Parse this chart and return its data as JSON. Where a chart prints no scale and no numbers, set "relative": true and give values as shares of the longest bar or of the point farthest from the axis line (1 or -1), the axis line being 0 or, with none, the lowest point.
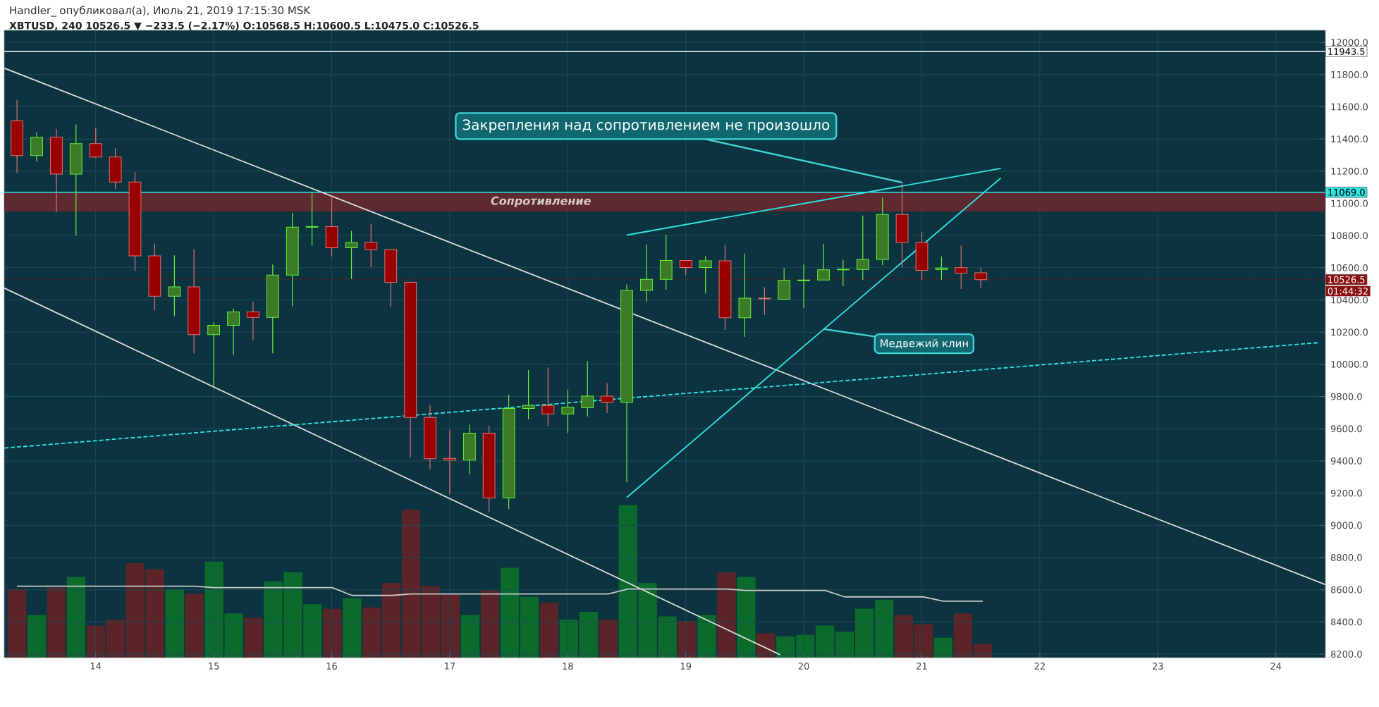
{
  "chart_data": [
    {
      "type": "candlestick",
      "title": "Handler_ опубликовал(а), Июль 21, 2019 17:15:30 MSK",
      "subtitle": "XBTUSD, 240 10526.5 ▼ −233.5 (−2.17%) O:10568.5 H:10600.5 L:10475.0 C:10526.5",
      "x": [
        13.333,
        13.5,
        13.667,
        13.833,
        14,
        14.167,
        14.333,
        14.5,
        14.667,
        14.833,
        15,
        15.167,
        15.333,
        15.5,
        15.667,
        15.833,
        16,
        16.167,
        16.333,
        16.5,
        16.667,
        16.833,
        17,
        17.167,
        17.333,
        17.5,
        17.667,
        17.833,
        18,
        18.167,
        18.333,
        18.5,
        18.667,
        18.833,
        19,
        19.167,
        19.333,
        19.5,
        19.667,
        19.833,
        20,
        20.167,
        20.333,
        20.5,
        20.667,
        20.833,
        21,
        21.167,
        21.333,
        21.5
      ],
      "ohlc": [
        [
          11512,
          11643,
          11189,
          11297
        ],
        [
          11297,
          11441,
          11261,
          11411
        ],
        [
          11411,
          11463,
          10946,
          11182
        ],
        [
          11182,
          11490,
          10800,
          11371
        ],
        [
          11371,
          11470,
          11283,
          11288
        ],
        [
          11288,
          11344,
          11088,
          11133
        ],
        [
          11133,
          11193,
          10580,
          10674
        ],
        [
          10674,
          10751,
          10335,
          10423
        ],
        [
          10423,
          10677,
          10301,
          10481
        ],
        [
          10481,
          10715,
          10068,
          10185
        ],
        [
          10185,
          10261,
          9852,
          10243
        ],
        [
          10243,
          10346,
          10059,
          10326
        ],
        [
          10326,
          10389,
          10149,
          10292
        ],
        [
          10292,
          10620,
          10068,
          10555
        ],
        [
          10555,
          10940,
          10362,
          10852
        ],
        [
          10852,
          11065,
          10737,
          10856
        ],
        [
          10856,
          11036,
          10670,
          10724
        ],
        [
          10724,
          10829,
          10530,
          10757
        ],
        [
          10757,
          10874,
          10605,
          10712
        ],
        [
          10712,
          10715,
          10357,
          10510
        ],
        [
          10510,
          10515,
          9423,
          9670
        ],
        [
          9670,
          9748,
          9349,
          9414
        ],
        [
          9416,
          9593,
          9193,
          9405
        ],
        [
          9405,
          9625,
          9319,
          9573
        ],
        [
          9573,
          9620,
          9081,
          9171
        ],
        [
          9171,
          9811,
          9101,
          9726
        ],
        [
          9726,
          9964,
          9659,
          9746
        ],
        [
          9744,
          9980,
          9616,
          9692
        ],
        [
          9692,
          9843,
          9575,
          9733
        ],
        [
          9731,
          10020,
          9677,
          9802
        ],
        [
          9802,
          9883,
          9699,
          9764
        ],
        [
          9764,
          10497,
          9268,
          10459
        ],
        [
          10459,
          10744,
          10389,
          10528
        ],
        [
          10528,
          10805,
          10463,
          10645
        ],
        [
          10645,
          10645,
          10553,
          10602
        ],
        [
          10602,
          10672,
          10441,
          10643
        ],
        [
          10643,
          10744,
          10211,
          10290
        ],
        [
          10290,
          10688,
          10171,
          10411
        ],
        [
          10411,
          10479,
          10306,
          10407
        ],
        [
          10405,
          10598,
          10405,
          10522
        ],
        [
          10519,
          10620,
          10351,
          10524
        ],
        [
          10524,
          10749,
          10524,
          10587
        ],
        [
          10587,
          10650,
          10486,
          10591
        ],
        [
          10589,
          10924,
          10524,
          10652
        ],
        [
          10652,
          11036,
          10616,
          10931
        ],
        [
          10931,
          11130,
          10602,
          10757
        ],
        [
          10757,
          10823,
          10524,
          10584
        ],
        [
          10589,
          10670,
          10526,
          10598
        ],
        [
          10600,
          10737,
          10468,
          10567
        ],
        [
          10568.5,
          10600.5,
          10475.0,
          10526.5
        ]
      ],
      "colors": [
        "#990000",
        "#3c7a28",
        "#990000",
        "#3c7a28",
        "#990000",
        "#990000",
        "#990000",
        "#990000",
        "#3c7a28",
        "#990000",
        "#3c7a28",
        "#3c7a28",
        "#990000",
        "#3c7a28",
        "#3c7a28",
        "#3c7a28",
        "#990000",
        "#3c7a28",
        "#990000",
        "#990000",
        "#990000",
        "#990000",
        "#990000",
        "#3c7a28",
        "#990000",
        "#3c7a28",
        "#3c7a28",
        "#990000",
        "#3c7a28",
        "#3c7a28",
        "#990000",
        "#3c7a28",
        "#3c7a28",
        "#3c7a28",
        "#990000",
        "#3c7a28",
        "#990000",
        "#3c7a28",
        "#990000",
        "#3c7a28",
        "#3c7a28",
        "#3c7a28",
        "#3c7a28",
        "#3c7a28",
        "#3c7a28",
        "#990000",
        "#990000",
        "#3c7a28",
        "#990000",
        "#990000"
      ],
      "series": [
        {
          "type": "line",
          "color": "#d8d8d8",
          "x": [
            13.225,
            24.42
          ],
          "values": [
            11840,
            8632
          ]
        },
        {
          "type": "line",
          "color": "#d8d8d8",
          "x": [
            13.225,
            19.8
          ],
          "values": [
            10474,
            8196
          ]
        },
        {
          "type": "line",
          "color": "#2ee6e6",
          "line_style": "dashed",
          "x": [
            13.225,
            24.37
          ],
          "values": [
            9480,
            10135
          ]
        },
        {
          "type": "line",
          "color": "#2ee6e6",
          "x": [
            18.5,
            21.67
          ],
          "values": [
            10803,
            11217
          ]
        },
        {
          "type": "line",
          "color": "#2ee6e6",
          "x": [
            18.5,
            21.67
          ],
          "values": [
            9173,
            11158
          ]
        }
      ],
      "xlim": [
        13.225,
        24.42
      ],
      "ylim": [
        8178,
        12075
      ],
      "xticks": [
        14,
        15,
        16,
        17,
        18,
        19,
        20,
        21,
        22,
        23,
        24
      ],
      "yticks": [
        {
          "value": 8200,
          "label": "8200.0"
        },
        {
          "value": 8400,
          "label": "8400.0"
        },
        {
          "value": 8600,
          "label": "8600.0"
        },
        {
          "value": 8800,
          "label": "8800.0"
        },
        {
          "value": 9000,
          "label": "9000.0"
        },
        {
          "value": 9200,
          "label": "9200.0"
        },
        {
          "value": 9400,
          "label": "9400.0"
        },
        {
          "value": 9600,
          "label": "9600.0"
        },
        {
          "value": 9800,
          "label": "9800.0"
        },
        {
          "value": 10000,
          "label": "10000.0"
        },
        {
          "value": 10200,
          "label": "10200.0"
        },
        {
          "value": 10400,
          "label": "10400.0"
        },
        {
          "value": 10600,
          "label": "10600.0"
        },
        {
          "value": 10800,
          "label": "10800.0"
        },
        {
          "value": 11000,
          "label": "11000.0"
        },
        {
          "value": 11200,
          "label": "11200.0"
        },
        {
          "value": 11400,
          "label": "11400.0"
        },
        {
          "value": 11600,
          "label": "11600.0"
        },
        {
          "value": 11800,
          "label": "11800.0"
        },
        {
          "value": 12000,
          "label": "12000.0"
        }
      ],
      "ref_lines": [
        {
          "axis": "y",
          "value": 11943.5,
          "label": "11943.5",
          "color": "#ffffff"
        },
        {
          "axis": "y",
          "value": 11069.0,
          "label": "11069.0",
          "color": "#2ee6e6"
        },
        {
          "axis": "y",
          "value": 10526.5,
          "label": "10526.5",
          "color": "#8b1010",
          "line_style": "dotted"
        }
      ],
      "bands": [
        {
          "axis": "y",
          "from": 10950,
          "to": 11069,
          "label": "Сопротивление",
          "color": "#5c2a30"
        }
      ],
      "annotations": [
        {
          "text": "Закрепления над сопротивлением не произошло",
          "x": 20.833,
          "y": 11130
        },
        {
          "text": "Медвежий клин",
          "x": 20.17,
          "y": 10219
        },
        "01:44:32"
      ],
      "grid": true
    },
    {
      "type": "bar",
      "relative": true,
      "tick_labels": false,
      "categories": [
        null,
        null,
        null,
        null,
        null,
        null,
        null,
        null,
        null,
        null,
        null,
        null,
        null,
        null,
        null,
        null,
        null,
        null,
        null,
        null,
        null,
        null,
        null,
        null,
        null,
        null,
        null,
        null,
        null,
        null,
        null,
        null,
        null,
        null,
        null,
        null,
        null,
        null,
        null,
        null,
        null,
        null,
        null,
        null,
        null,
        null,
        null,
        null,
        null,
        null
      ],
      "series": [
        {
          "type": "bar",
          "values": [
            0.45,
            0.28,
            0.46,
            0.53,
            0.21,
            0.25,
            0.62,
            0.58,
            0.45,
            0.42,
            0.63,
            0.29,
            0.26,
            0.5,
            0.56,
            0.35,
            0.32,
            0.39,
            0.33,
            0.49,
            0.97,
            0.47,
            0.42,
            0.28,
            0.44,
            0.59,
            0.4,
            0.36,
            0.25,
            0.3,
            0.25,
            1,
            0.49,
            0.27,
            0.24,
            0.28,
            0.56,
            0.53,
            0.16,
            0.14,
            0.15,
            0.21,
            0.17,
            0.32,
            0.38,
            0.28,
            0.22,
            0.13,
            0.29,
            0.09
          ],
          "colors": [
            "#5a2428",
            "#0b6b2c",
            "#5a2428",
            "#0b6b2c",
            "#5a2428",
            "#5a2428",
            "#5a2428",
            "#5a2428",
            "#0b6b2c",
            "#5a2428",
            "#0b6b2c",
            "#0b6b2c",
            "#5a2428",
            "#0b6b2c",
            "#0b6b2c",
            "#0b6b2c",
            "#5a2428",
            "#0b6b2c",
            "#5a2428",
            "#5a2428",
            "#5a2428",
            "#5a2428",
            "#5a2428",
            "#0b6b2c",
            "#5a2428",
            "#0b6b2c",
            "#0b6b2c",
            "#5a2428",
            "#0b6b2c",
            "#0b6b2c",
            "#5a2428",
            "#0b6b2c",
            "#0b6b2c",
            "#0b6b2c",
            "#5a2428",
            "#0b6b2c",
            "#5a2428",
            "#0b6b2c",
            "#5a2428",
            "#0b6b2c",
            "#0b6b2c",
            "#0b6b2c",
            "#0b6b2c",
            "#0b6b2c",
            "#0b6b2c",
            "#5a2428",
            "#5a2428",
            "#0b6b2c",
            "#5a2428",
            "#5a2428"
          ]
        }
      ]
    },
    {
      "type": "line",
      "relative": true,
      "tick_labels": false,
      "categories": [
        null,
        null,
        null,
        null,
        null,
        null,
        null,
        null,
        null,
        null,
        null,
        null,
        null,
        null,
        null,
        null,
        null,
        null,
        null,
        null,
        null,
        null,
        null,
        null,
        null,
        null,
        null,
        null,
        null,
        null,
        null,
        null,
        null,
        null,
        null,
        null,
        null,
        null,
        null,
        null,
        null,
        null,
        null,
        null,
        null,
        null,
        null,
        null,
        null,
        null
      ],
      "series": [
        {
          "color": "#c8c8c8",
          "values": [
            1,
            1,
            1,
            1,
            1,
            1,
            1,
            1,
            1,
            1,
            0.98,
            0.98,
            0.98,
            0.98,
            0.98,
            0.98,
            0.98,
            0.87,
            0.87,
            0.87,
            0.89,
            0.89,
            0.89,
            0.89,
            0.89,
            0.89,
            0.89,
            0.89,
            0.89,
            0.89,
            0.89,
            0.96,
            0.96,
            0.96,
            0.96,
            0.96,
            0.96,
            0.94,
            0.94,
            0.94,
            0.94,
            0.94,
            0.85,
            0.85,
            0.85,
            0.85,
            0.85,
            0.79,
            0.79,
            0.79
          ]
        }
      ]
    }
  ]
}
